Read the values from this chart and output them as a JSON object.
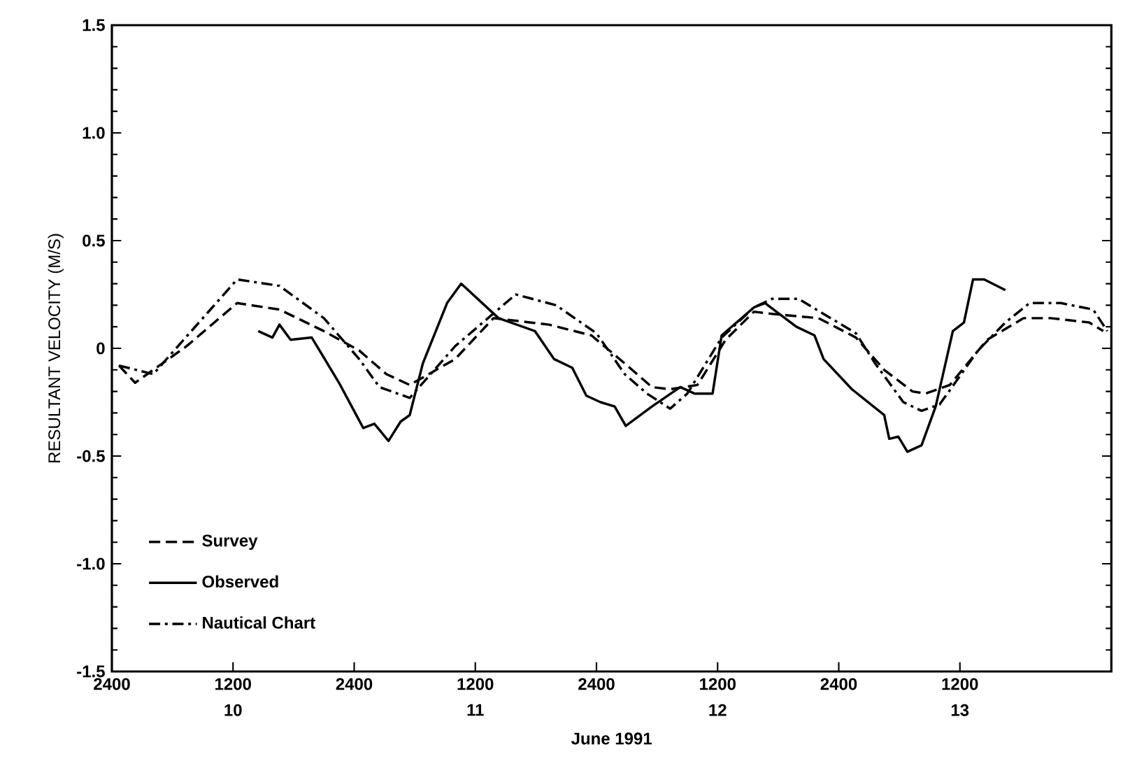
{
  "chart_data": {
    "type": "line",
    "xlabel": "June 1991",
    "ylabel": "RESULTANT VELOCITY (M/S)",
    "xlim": [
      "1991-06-10T00:00",
      "1991-06-14T03:00"
    ],
    "ylim": [
      -1.5,
      1.5
    ],
    "xticks": [
      {
        "value": "1991-06-10T00:00",
        "label": "2400"
      },
      {
        "value": "1991-06-10T12:00",
        "label": "1200"
      },
      {
        "value": "1991-06-11T00:00",
        "label": "2400"
      },
      {
        "value": "1991-06-11T12:00",
        "label": "1200"
      },
      {
        "value": "1991-06-12T00:00",
        "label": "2400"
      },
      {
        "value": "1991-06-12T12:00",
        "label": "1200"
      },
      {
        "value": "1991-06-13T00:00",
        "label": "2400"
      },
      {
        "value": "1991-06-13T12:00",
        "label": "1200"
      }
    ],
    "yticks": [
      {
        "value": -1.5,
        "label": "-1.5"
      },
      {
        "value": -1,
        "label": "-1.0"
      },
      -0.5,
      0,
      0.5,
      {
        "value": 1,
        "label": "1.0"
      },
      1.5
    ],
    "annotations": [
      "10",
      "11",
      "12",
      "13"
    ],
    "legend": "bottom left",
    "marker": "none",
    "series": [
      {
        "name": "Survey",
        "color": "#000000",
        "line_style": "dashed",
        "x": [
          "1991-06-10T00:42",
          "1991-06-10T02:18",
          "1991-06-10T07:24",
          "1991-06-10T12:24",
          "1991-06-10T16:36",
          "1991-06-10T21:00",
          "1991-06-11T00:30",
          "1991-06-11T03:12",
          "1991-06-11T05:30",
          "1991-06-11T10:00",
          "1991-06-11T13:48",
          "1991-06-11T19:18",
          "1991-06-11T23:30",
          "1991-06-12T02:48",
          "1991-06-12T05:30",
          "1991-06-12T07:18",
          "1991-06-12T10:00",
          "1991-06-12T12:48",
          "1991-06-12T15:36",
          "1991-06-12T17:24",
          "1991-06-12T22:00",
          "1991-06-13T01:42",
          "1991-06-13T04:30",
          "1991-06-13T07:18",
          "1991-06-13T08:36",
          "1991-06-13T11:00",
          "1991-06-13T14:42",
          "1991-06-13T18:18",
          "1991-06-13T21:00",
          "1991-06-14T00:48",
          "1991-06-14T02:12"
        ],
        "values": [
          -0.08,
          -0.16,
          0.01,
          0.21,
          0.18,
          0.08,
          -0.01,
          -0.12,
          -0.17,
          -0.05,
          0.14,
          0.11,
          0.06,
          -0.07,
          -0.18,
          -0.19,
          -0.17,
          0.04,
          0.17,
          0.16,
          0.14,
          0.05,
          -0.1,
          -0.2,
          -0.21,
          -0.17,
          0.04,
          0.14,
          0.14,
          0.12,
          0.08
        ]
      },
      {
        "name": "Observed",
        "color": "#000000",
        "line_style": "solid",
        "x": [
          "1991-06-10T14:30",
          "1991-06-10T15:54",
          "1991-06-10T16:36",
          "1991-06-10T17:42",
          "1991-06-10T19:48",
          "1991-06-10T22:30",
          "1991-06-11T00:54",
          "1991-06-11T02:00",
          "1991-06-11T03:24",
          "1991-06-11T04:36",
          "1991-06-11T05:30",
          "1991-06-11T06:48",
          "1991-06-11T09:12",
          "1991-06-11T10:36",
          "1991-06-11T14:18",
          "1991-06-11T17:54",
          "1991-06-11T19:48",
          "1991-06-11T21:36",
          "1991-06-11T23:00",
          "1991-06-12T00:24",
          "1991-06-12T01:48",
          "1991-06-12T02:54",
          "1991-06-12T05:30",
          "1991-06-12T08:18",
          "1991-06-12T09:42",
          "1991-06-12T11:30",
          "1991-06-12T12:24",
          "1991-06-12T15:36",
          "1991-06-12T16:42",
          "1991-06-12T19:48",
          "1991-06-12T21:36",
          "1991-06-12T22:30",
          "1991-06-13T01:18",
          "1991-06-13T04:30",
          "1991-06-13T05:00",
          "1991-06-13T05:54",
          "1991-06-13T06:48",
          "1991-06-13T08:12",
          "1991-06-13T09:36",
          "1991-06-13T11:18",
          "1991-06-13T12:24",
          "1991-06-13T13:18",
          "1991-06-13T14:24",
          "1991-06-13T16:30"
        ],
        "values": [
          0.08,
          0.05,
          0.11,
          0.04,
          0.05,
          -0.16,
          -0.37,
          -0.35,
          -0.43,
          -0.34,
          -0.31,
          -0.07,
          0.21,
          0.3,
          0.14,
          0.08,
          -0.05,
          -0.09,
          -0.22,
          -0.25,
          -0.27,
          -0.36,
          -0.27,
          -0.18,
          -0.21,
          -0.21,
          0.06,
          0.19,
          0.21,
          0.1,
          0.06,
          -0.05,
          -0.19,
          -0.31,
          -0.42,
          -0.41,
          -0.48,
          -0.45,
          -0.27,
          0.08,
          0.12,
          0.32,
          0.32,
          0.27
        ]
      },
      {
        "name": "Nautical Chart",
        "color": "#000000",
        "line_style": "dashdot",
        "x": [
          "1991-06-10T00:42",
          "1991-06-10T04:06",
          "1991-06-10T12:24",
          "1991-06-10T16:36",
          "1991-06-10T21:00",
          "1991-06-11T00:30",
          "1991-06-11T02:30",
          "1991-06-11T05:30",
          "1991-06-11T10:00",
          "1991-06-11T16:00",
          "1991-06-11T20:00",
          "1991-06-12T00:00",
          "1991-06-12T02:48",
          "1991-06-12T05:00",
          "1991-06-12T07:18",
          "1991-06-12T09:00",
          "1991-06-12T12:24",
          "1991-06-12T15:36",
          "1991-06-12T17:24",
          "1991-06-12T20:00",
          "1991-06-13T01:42",
          "1991-06-13T03:36",
          "1991-06-13T06:24",
          "1991-06-13T08:12",
          "1991-06-13T10:00",
          "1991-06-13T13:48",
          "1991-06-13T16:30",
          "1991-06-13T18:54",
          "1991-06-13T22:00",
          "1991-06-14T01:12",
          "1991-06-14T02:36"
        ],
        "values": [
          -0.08,
          -0.12,
          0.32,
          0.29,
          0.14,
          -0.05,
          -0.18,
          -0.23,
          0.01,
          0.25,
          0.2,
          0.07,
          -0.12,
          -0.21,
          -0.28,
          -0.21,
          0.05,
          0.19,
          0.23,
          0.23,
          0.07,
          -0.07,
          -0.25,
          -0.29,
          -0.26,
          -0.01,
          0.12,
          0.21,
          0.21,
          0.18,
          0.08
        ]
      }
    ]
  }
}
